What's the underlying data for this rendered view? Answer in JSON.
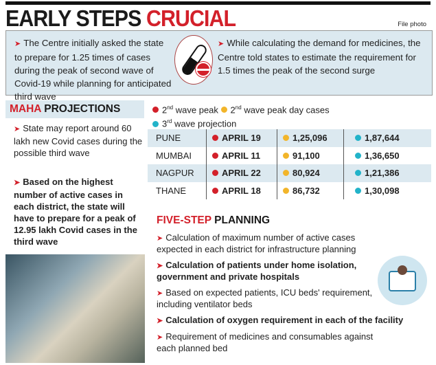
{
  "title": {
    "part1": "EARLY STEPS",
    "part2": "CRUCIAL"
  },
  "credit": "File photo",
  "top_box": {
    "left": "The Centre initially asked the state to prepare for 1.25 times of cases during the peak of second wave of Covid-19 while planning for anticipated third wave",
    "right": "While calculating the demand for medicines, the Centre told states to estimate the requirement for 1.5 times the peak of the second surge"
  },
  "maha": {
    "heading_red": "MAHA",
    "heading": "PROJECTIONS",
    "bullets": [
      "State may report around 60 lakh new Covid cases during the possible third wave",
      "Based on the highest number of active cases in each district, the state will have to prepare for a peak of 12.95 lakh Covid cases in the third wave"
    ]
  },
  "legend": {
    "red_sup": "nd",
    "red": "wave peak",
    "yellow_sup": "nd",
    "yellow": "wave peak day cases",
    "cyan_sup": "rd",
    "cyan": "wave projection",
    "n2": "2",
    "n3": "3"
  },
  "colors": {
    "red": "#d3202a",
    "yellow": "#f2b52a",
    "cyan": "#22b3c9",
    "panel": "#dce9f0"
  },
  "table": [
    {
      "city": "PUNE",
      "peak": "APRIL 19",
      "cases": "1,25,096",
      "projection": "1,87,644"
    },
    {
      "city": "MUMBAI",
      "peak": "APRIL 11",
      "cases": "91,100",
      "projection": "1,36,650"
    },
    {
      "city": "NAGPUR",
      "peak": "APRIL 22",
      "cases": "80,924",
      "projection": "1,21,386"
    },
    {
      "city": "THANE",
      "peak": "APRIL 18",
      "cases": "86,732",
      "projection": "1,30,098"
    }
  ],
  "planning": {
    "heading_red": "FIVE-STEP",
    "heading": "PLANNING",
    "steps": [
      "Calculation of maximum number of active cases expected in each district for infrastructure planning",
      "Calculation of patients under home isolation, government and private hospitals",
      "Based on expected patients, ICU beds' requirement, including ventilator beds",
      "Calculation of oxygen requirement in each of the facility",
      "Requirement of medicines and consumables against each planned bed"
    ]
  }
}
